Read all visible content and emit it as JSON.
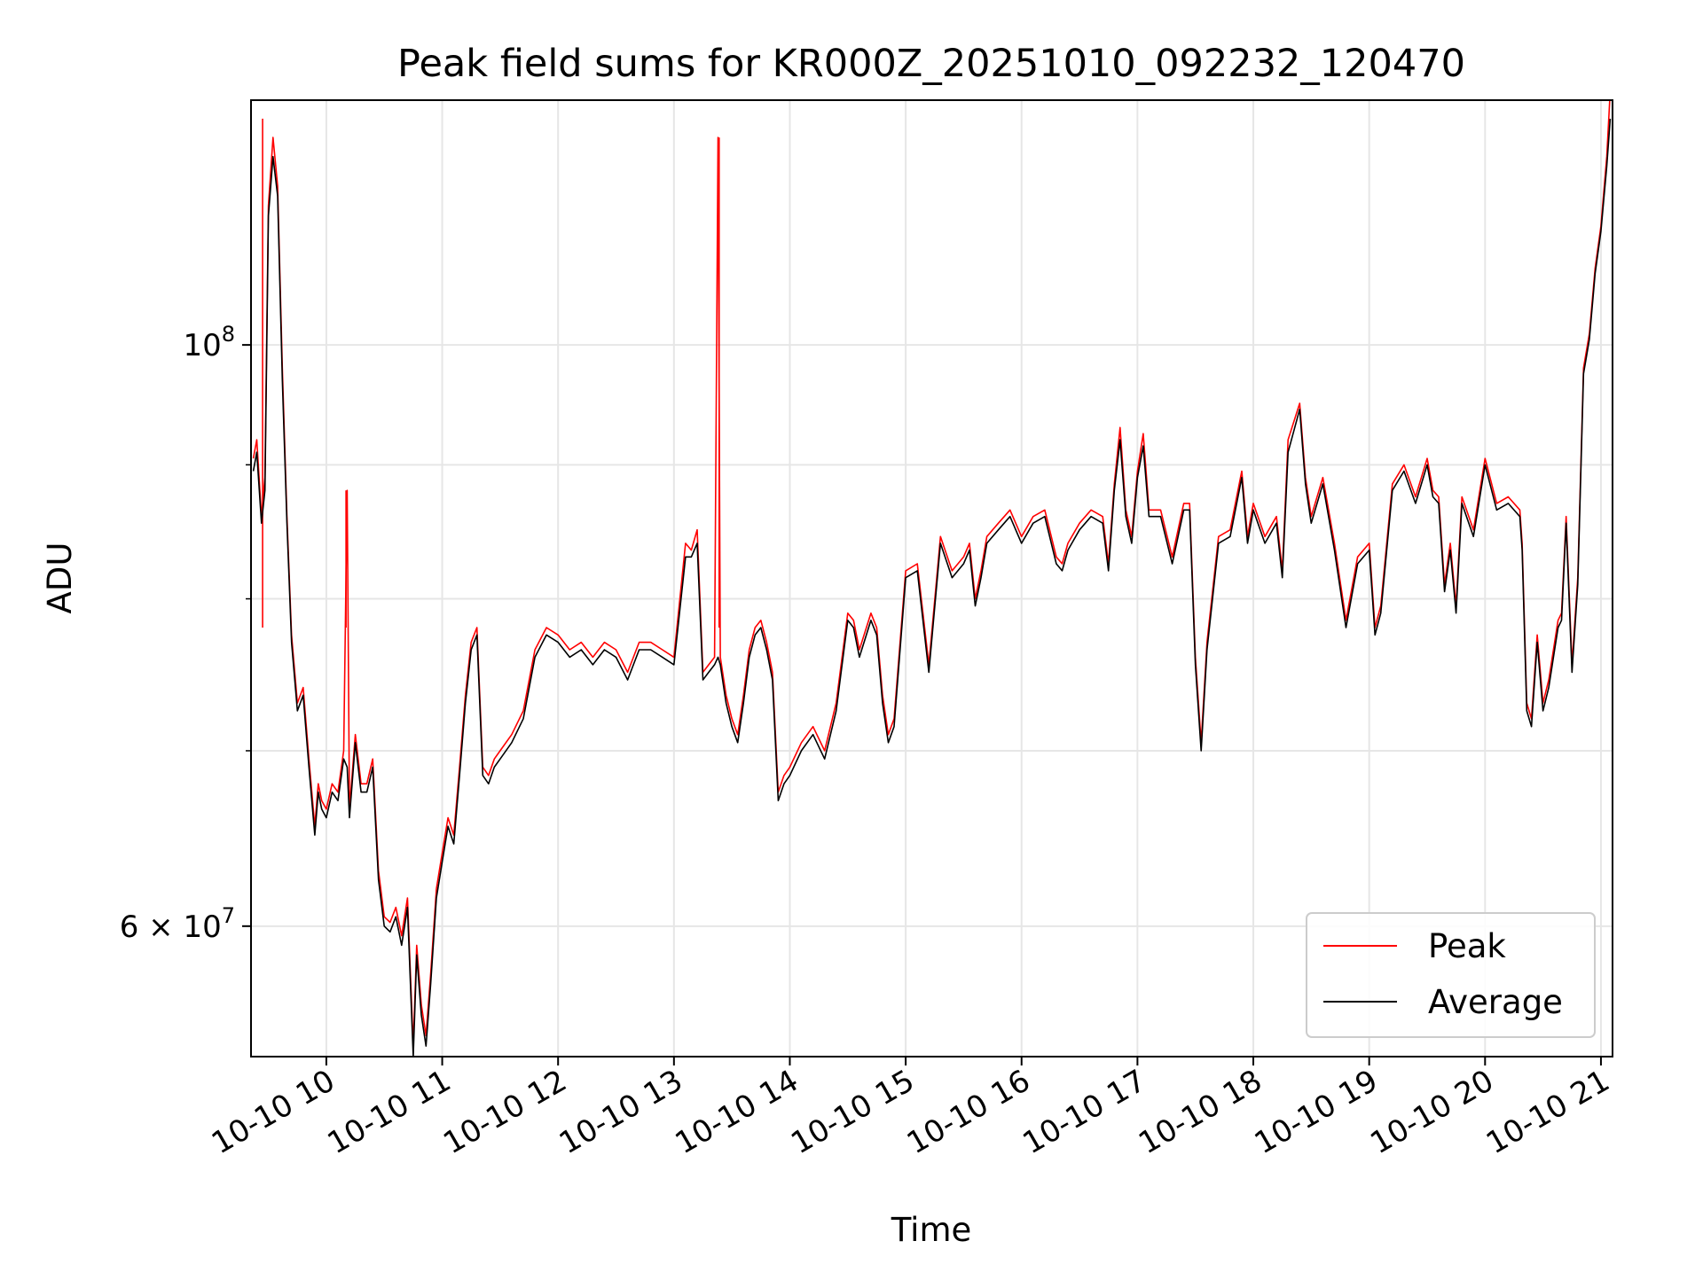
{
  "chart_data": {
    "type": "line",
    "title": "Peak field sums for KR000Z_20251010_092232_120470",
    "xlabel": "Time",
    "ylabel": "ADU",
    "yscale": "log",
    "ylim": [
      53500000,
      124000000
    ],
    "xlim": [
      9.35,
      21.1
    ],
    "grid": true,
    "legend_position": "lower-right",
    "x_ticks": [
      {
        "value": 10,
        "label": "10-10 10"
      },
      {
        "value": 11,
        "label": "10-10 11"
      },
      {
        "value": 12,
        "label": "10-10 12"
      },
      {
        "value": 13,
        "label": "10-10 13"
      },
      {
        "value": 14,
        "label": "10-10 14"
      },
      {
        "value": 15,
        "label": "10-10 15"
      },
      {
        "value": 16,
        "label": "10-10 16"
      },
      {
        "value": 17,
        "label": "10-10 17"
      },
      {
        "value": 18,
        "label": "10-10 18"
      },
      {
        "value": 19,
        "label": "10-10 19"
      },
      {
        "value": 20,
        "label": "10-10 20"
      },
      {
        "value": 21,
        "label": "10-10 21"
      }
    ],
    "y_major_ticks": [
      {
        "value": 60000000,
        "mantissa": "6",
        "base": "10",
        "exp": "7",
        "sep": "×"
      },
      {
        "value": 100000000,
        "mantissa": "",
        "base": "10",
        "exp": "8",
        "sep": ""
      }
    ],
    "y_minor_ticks": [
      70000000,
      80000000,
      90000000
    ],
    "series": [
      {
        "name": "Peak",
        "color": "#ff0000",
        "x": [
          9.37,
          9.4,
          9.44,
          9.47,
          9.5,
          9.54,
          9.58,
          9.62,
          9.66,
          9.7,
          9.75,
          9.8,
          9.85,
          9.9,
          9.93,
          9.96,
          10.0,
          10.05,
          10.1,
          10.15,
          10.18,
          10.2,
          10.25,
          10.3,
          10.35,
          10.4,
          10.45,
          10.5,
          10.55,
          10.6,
          10.65,
          10.7,
          10.75,
          10.78,
          10.82,
          10.86,
          10.9,
          10.95,
          11.0,
          11.05,
          11.1,
          11.15,
          11.2,
          11.25,
          11.3,
          11.35,
          11.4,
          11.45,
          11.5,
          11.6,
          11.7,
          11.8,
          11.9,
          12.0,
          12.1,
          12.2,
          12.3,
          12.4,
          12.5,
          12.6,
          12.7,
          12.8,
          12.9,
          13.0,
          13.1,
          13.15,
          13.2,
          13.25,
          13.3,
          13.35,
          13.38,
          13.4,
          13.45,
          13.5,
          13.55,
          13.6,
          13.65,
          13.7,
          13.75,
          13.8,
          13.85,
          13.9,
          13.95,
          14.0,
          14.1,
          14.2,
          14.3,
          14.4,
          14.5,
          14.55,
          14.6,
          14.7,
          14.75,
          14.8,
          14.85,
          14.9,
          15.0,
          15.1,
          15.2,
          15.3,
          15.4,
          15.5,
          15.55,
          15.6,
          15.65,
          15.7,
          15.8,
          15.9,
          16.0,
          16.1,
          16.2,
          16.3,
          16.35,
          16.4,
          16.5,
          16.6,
          16.7,
          16.75,
          16.8,
          16.85,
          16.9,
          16.95,
          17.0,
          17.05,
          17.1,
          17.2,
          17.3,
          17.4,
          17.45,
          17.5,
          17.55,
          17.6,
          17.7,
          17.8,
          17.9,
          17.95,
          18.0,
          18.1,
          18.2,
          18.25,
          18.3,
          18.4,
          18.45,
          18.5,
          18.6,
          18.7,
          18.8,
          18.9,
          19.0,
          19.05,
          19.1,
          19.2,
          19.3,
          19.4,
          19.5,
          19.55,
          19.6,
          19.65,
          19.7,
          19.75,
          19.8,
          19.9,
          20.0,
          20.1,
          20.2,
          20.3,
          20.32,
          20.36,
          20.4,
          20.45,
          20.5,
          20.55,
          20.6,
          20.63,
          20.66,
          20.7,
          20.75,
          20.8,
          20.85,
          20.9,
          20.95,
          21.0,
          21.05,
          21.08
        ],
        "y": [
          90500000,
          92000000,
          86000000,
          89000000,
          113000000,
          120000000,
          115000000,
          98000000,
          86000000,
          77500000,
          73000000,
          74000000,
          69500000,
          65500000,
          68000000,
          67000000,
          66500000,
          68000000,
          67500000,
          70000000,
          88000000,
          66500000,
          71000000,
          68000000,
          68000000,
          69500000,
          63000000,
          60500000,
          60200000,
          61000000,
          59500000,
          61500000,
          54000000,
          59000000,
          56000000,
          54500000,
          57500000,
          62000000,
          64000000,
          66000000,
          65000000,
          69000000,
          73500000,
          77000000,
          78000000,
          69000000,
          68500000,
          69500000,
          70000000,
          71000000,
          72500000,
          76500000,
          78000000,
          77500000,
          76500000,
          77000000,
          76000000,
          77000000,
          76500000,
          75000000,
          77000000,
          77000000,
          76500000,
          76000000,
          84000000,
          83500000,
          85000000,
          75000000,
          75500000,
          76000000,
          120000000,
          76000000,
          73500000,
          72000000,
          71000000,
          73500000,
          76500000,
          78000000,
          78500000,
          77000000,
          75000000,
          67500000,
          68500000,
          69000000,
          70500000,
          71500000,
          70000000,
          73000000,
          79000000,
          78500000,
          76500000,
          79000000,
          78000000,
          73500000,
          71000000,
          72000000,
          82000000,
          82500000,
          75500000,
          84500000,
          82000000,
          83000000,
          84000000,
          80000000,
          82000000,
          84500000,
          85500000,
          86500000,
          84500000,
          86000000,
          86500000,
          83000000,
          82500000,
          84000000,
          85500000,
          86500000,
          86000000,
          82500000,
          88500000,
          93000000,
          86500000,
          84500000,
          89500000,
          92500000,
          86500000,
          86500000,
          83000000,
          87000000,
          87000000,
          76000000,
          70500000,
          77000000,
          84500000,
          85000000,
          89500000,
          84500000,
          87000000,
          84500000,
          86000000,
          82000000,
          92000000,
          95000000,
          89000000,
          86000000,
          89000000,
          84000000,
          78500000,
          83000000,
          84000000,
          78000000,
          79500000,
          88500000,
          90000000,
          87500000,
          90500000,
          88000000,
          87500000,
          81000000,
          84000000,
          79500000,
          87500000,
          85000000,
          90500000,
          87000000,
          87500000,
          86500000,
          84000000,
          73000000,
          72000000,
          77500000,
          73000000,
          74500000,
          77000000,
          78500000,
          79000000,
          86000000,
          75500000,
          81500000,
          98000000,
          101000000,
          107000000,
          111000000,
          118000000,
          125000000
        ],
        "spikes": [
          {
            "x": 10.17,
            "y": 88000000
          },
          {
            "x": 13.39,
            "y": 120000000
          },
          {
            "x": 9.45,
            "y": 122000000
          }
        ]
      },
      {
        "name": "Average",
        "color": "#000000",
        "x": [
          9.37,
          9.4,
          9.44,
          9.47,
          9.5,
          9.54,
          9.58,
          9.62,
          9.66,
          9.7,
          9.75,
          9.8,
          9.85,
          9.9,
          9.93,
          9.96,
          10.0,
          10.05,
          10.1,
          10.15,
          10.18,
          10.2,
          10.25,
          10.3,
          10.35,
          10.4,
          10.45,
          10.5,
          10.55,
          10.6,
          10.65,
          10.7,
          10.75,
          10.78,
          10.82,
          10.86,
          10.9,
          10.95,
          11.0,
          11.05,
          11.1,
          11.15,
          11.2,
          11.25,
          11.3,
          11.35,
          11.4,
          11.45,
          11.5,
          11.6,
          11.7,
          11.8,
          11.9,
          12.0,
          12.1,
          12.2,
          12.3,
          12.4,
          12.5,
          12.6,
          12.7,
          12.8,
          12.9,
          13.0,
          13.1,
          13.15,
          13.2,
          13.25,
          13.3,
          13.35,
          13.38,
          13.4,
          13.45,
          13.5,
          13.55,
          13.6,
          13.65,
          13.7,
          13.75,
          13.8,
          13.85,
          13.9,
          13.95,
          14.0,
          14.1,
          14.2,
          14.3,
          14.4,
          14.5,
          14.55,
          14.6,
          14.7,
          14.75,
          14.8,
          14.85,
          14.9,
          15.0,
          15.1,
          15.2,
          15.3,
          15.4,
          15.5,
          15.55,
          15.6,
          15.65,
          15.7,
          15.8,
          15.9,
          16.0,
          16.1,
          16.2,
          16.3,
          16.35,
          16.4,
          16.5,
          16.6,
          16.7,
          16.75,
          16.8,
          16.85,
          16.9,
          16.95,
          17.0,
          17.05,
          17.1,
          17.2,
          17.3,
          17.4,
          17.45,
          17.5,
          17.55,
          17.6,
          17.7,
          17.8,
          17.9,
          17.95,
          18.0,
          18.1,
          18.2,
          18.25,
          18.3,
          18.4,
          18.45,
          18.5,
          18.6,
          18.7,
          18.8,
          18.9,
          19.0,
          19.05,
          19.1,
          19.2,
          19.3,
          19.4,
          19.5,
          19.55,
          19.6,
          19.65,
          19.7,
          19.75,
          19.8,
          19.9,
          20.0,
          20.1,
          20.2,
          20.3,
          20.32,
          20.36,
          20.4,
          20.45,
          20.5,
          20.55,
          20.6,
          20.63,
          20.66,
          20.7,
          20.75,
          20.8,
          20.85,
          20.9,
          20.95,
          21.0,
          21.05,
          21.08
        ],
        "y": [
          89500000,
          91000000,
          85500000,
          88000000,
          112000000,
          118000000,
          114000000,
          97000000,
          85500000,
          77000000,
          72500000,
          73500000,
          69000000,
          65000000,
          67500000,
          66500000,
          66000000,
          67500000,
          67000000,
          69500000,
          69000000,
          66000000,
          70500000,
          67500000,
          67500000,
          69000000,
          62500000,
          60000000,
          59700000,
          60500000,
          59000000,
          61000000,
          53500000,
          58500000,
          55500000,
          54000000,
          57000000,
          61500000,
          63500000,
          65500000,
          64500000,
          68500000,
          73000000,
          76500000,
          77500000,
          68500000,
          68000000,
          69000000,
          69500000,
          70500000,
          72000000,
          76000000,
          77500000,
          77000000,
          76000000,
          76500000,
          75500000,
          76500000,
          76000000,
          74500000,
          76500000,
          76500000,
          76000000,
          75500000,
          83000000,
          83000000,
          84000000,
          74500000,
          75000000,
          75500000,
          76000000,
          75500000,
          73000000,
          71500000,
          70500000,
          73000000,
          76000000,
          77500000,
          78000000,
          76500000,
          74500000,
          67000000,
          68000000,
          68500000,
          70000000,
          71000000,
          69500000,
          72500000,
          78500000,
          78000000,
          76000000,
          78500000,
          77500000,
          73000000,
          70500000,
          71500000,
          81500000,
          82000000,
          75000000,
          84000000,
          81500000,
          82500000,
          83500000,
          79500000,
          81500000,
          84000000,
          85000000,
          86000000,
          84000000,
          85500000,
          86000000,
          82500000,
          82000000,
          83500000,
          85000000,
          86000000,
          85500000,
          82000000,
          88000000,
          92000000,
          86000000,
          84000000,
          89000000,
          91500000,
          86000000,
          86000000,
          82500000,
          86500000,
          86500000,
          75500000,
          70000000,
          76500000,
          84000000,
          84500000,
          89000000,
          84000000,
          86500000,
          84000000,
          85500000,
          81500000,
          91000000,
          94500000,
          88500000,
          85500000,
          88500000,
          83500000,
          78000000,
          82500000,
          83500000,
          77500000,
          79000000,
          88000000,
          89500000,
          87000000,
          90000000,
          87500000,
          87000000,
          80500000,
          83500000,
          79000000,
          87000000,
          84500000,
          90000000,
          86500000,
          87000000,
          86000000,
          83500000,
          72500000,
          71500000,
          77000000,
          72500000,
          74000000,
          76500000,
          78000000,
          78500000,
          85500000,
          75000000,
          81000000,
          97500000,
          100500000,
          106500000,
          110500000,
          117000000,
          122000000
        ]
      }
    ]
  }
}
